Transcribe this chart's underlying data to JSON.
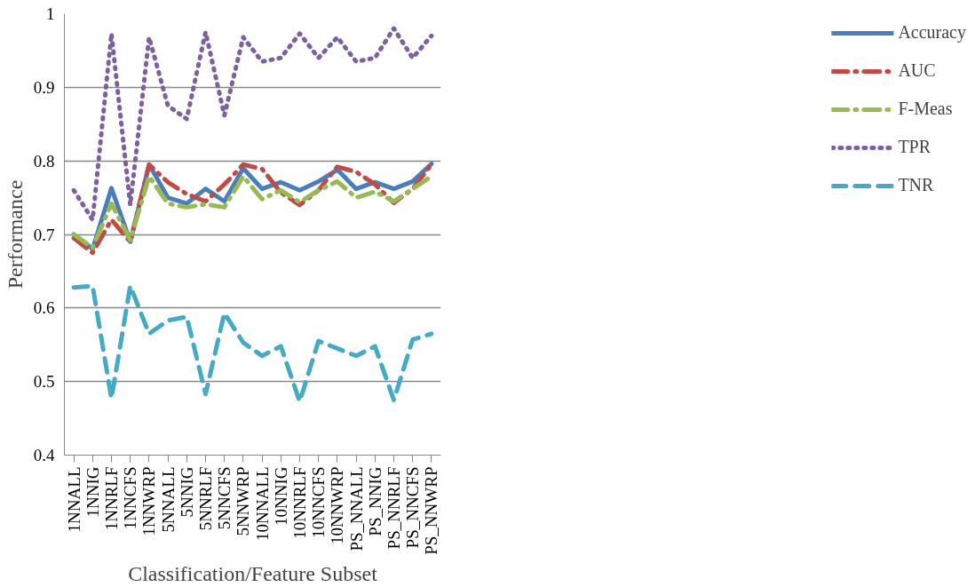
{
  "chart_data": {
    "type": "line",
    "xlabel": "Classification/Feature Subset",
    "ylabel": "Performance",
    "categories": [
      "1NNALL",
      "1NNIG",
      "1NNRLF",
      "1NNCFS",
      "1NNWRP",
      "5NNALL",
      "5NNIG",
      "5NNRLF",
      "5NNCFS",
      "5NNWRP",
      "10NNALL",
      "10NNIG",
      "10NNRLF",
      "10NNCFS",
      "10NNWRP",
      "PS_NNALL",
      "PS_NNIG",
      "PS_NNRLF",
      "PS_NNCFS",
      "PS_NNWRP"
    ],
    "series": [
      {
        "name": "Accuracy",
        "color": "#4a7ebb",
        "line_style": "solid",
        "values": [
          0.7,
          0.68,
          0.763,
          0.69,
          0.795,
          0.75,
          0.742,
          0.762,
          0.745,
          0.79,
          0.762,
          0.771,
          0.76,
          0.772,
          0.788,
          0.762,
          0.771,
          0.762,
          0.772,
          0.796
        ]
      },
      {
        "name": "AUC",
        "color": "#be4b48",
        "line_style": "dashdot",
        "values": [
          0.695,
          0.675,
          0.72,
          0.69,
          0.795,
          0.771,
          0.755,
          0.745,
          0.768,
          0.795,
          0.789,
          0.757,
          0.74,
          0.76,
          0.792,
          0.785,
          0.768,
          0.743,
          0.762,
          0.795
        ]
      },
      {
        "name": "F-Meas",
        "color": "#98b954",
        "line_style": "dashdot",
        "values": [
          0.7,
          0.682,
          0.742,
          0.692,
          0.779,
          0.742,
          0.737,
          0.741,
          0.737,
          0.779,
          0.748,
          0.76,
          0.744,
          0.76,
          0.772,
          0.75,
          0.758,
          0.745,
          0.762,
          0.779
        ]
      },
      {
        "name": "TPR",
        "color": "#7d60a0",
        "line_style": "dotted",
        "values": [
          0.76,
          0.72,
          0.973,
          0.74,
          0.968,
          0.875,
          0.857,
          0.975,
          0.862,
          0.968,
          0.935,
          0.94,
          0.973,
          0.94,
          0.968,
          0.935,
          0.94,
          0.98,
          0.94,
          0.97
        ]
      },
      {
        "name": "TNR",
        "color": "#46aac5",
        "line_style": "dashed",
        "values": [
          0.628,
          0.63,
          0.477,
          0.63,
          0.565,
          0.583,
          0.588,
          0.483,
          0.593,
          0.553,
          0.535,
          0.548,
          0.473,
          0.555,
          0.545,
          0.535,
          0.548,
          0.475,
          0.557,
          0.565
        ]
      }
    ],
    "ylim": [
      0.4,
      1
    ],
    "yticks": [
      {
        "value": 0.4,
        "label": "0.4"
      },
      {
        "value": 0.5,
        "label": "0.5"
      },
      {
        "value": 0.6,
        "label": "0.6"
      },
      {
        "value": 0.7,
        "label": "0.7"
      },
      {
        "value": 0.8,
        "label": "0.8"
      },
      {
        "value": 0.9,
        "label": "0.9"
      },
      {
        "value": 1,
        "label": "1"
      }
    ],
    "grid": "y",
    "legend": "right",
    "marker": "none"
  }
}
